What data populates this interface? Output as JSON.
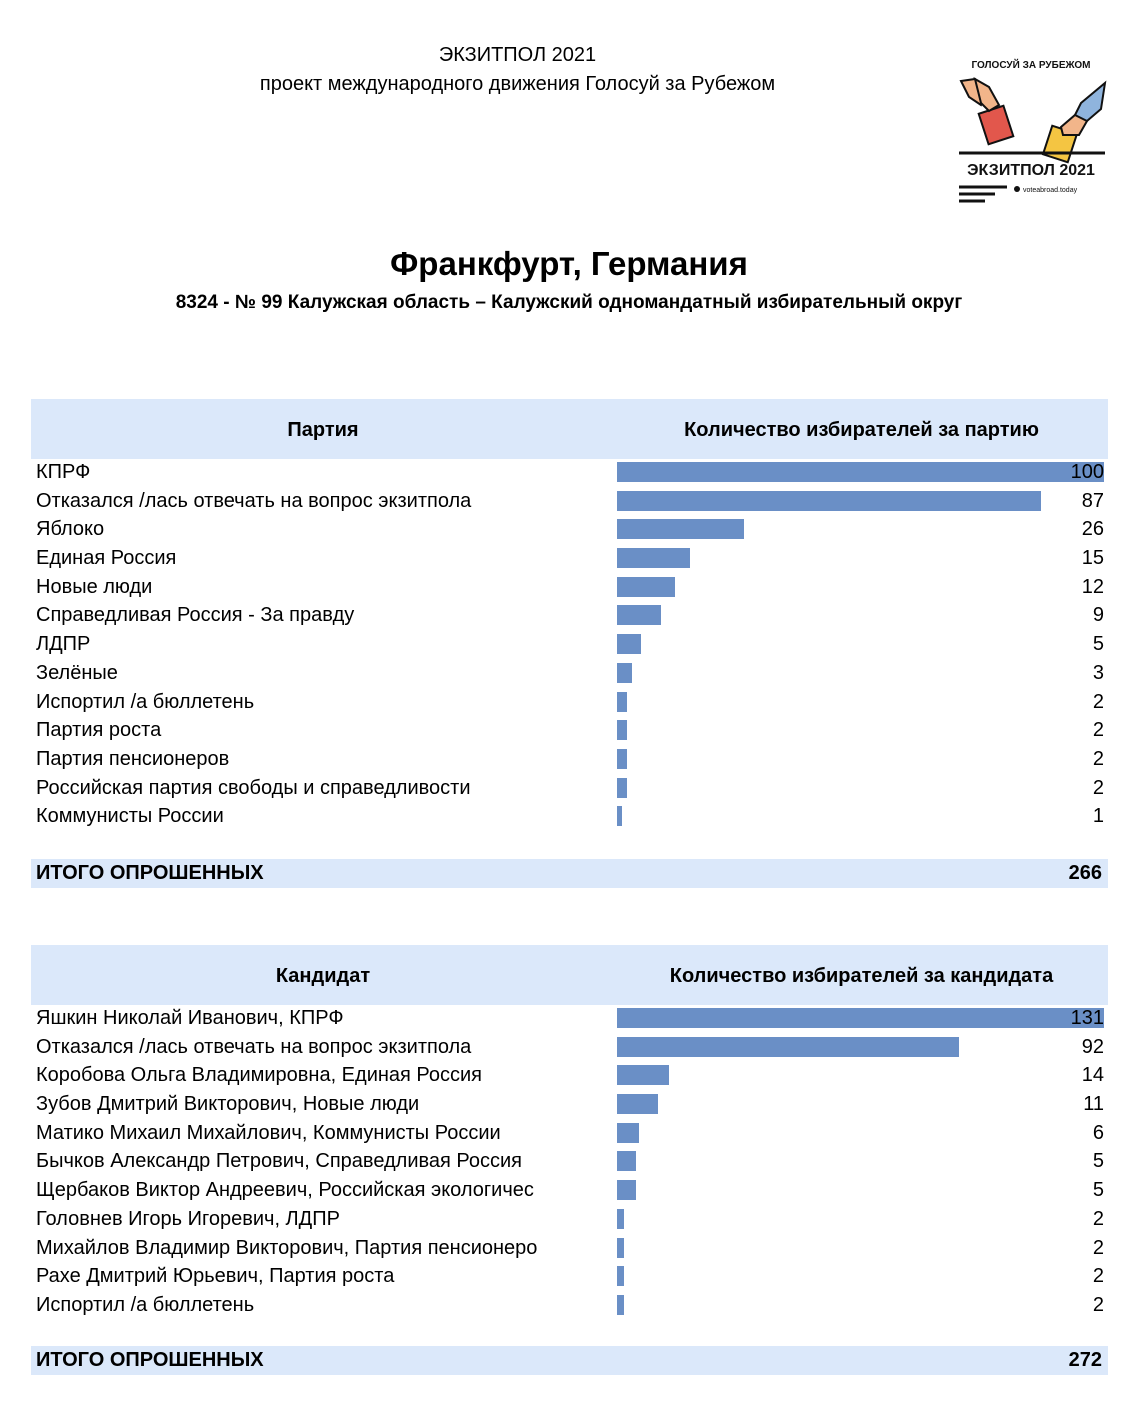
{
  "header": {
    "line1": "ЭКЗИТПОЛ 2021",
    "line2": "проект международного движения Голосуй за Рубежом"
  },
  "logo": {
    "top_text": "ГОЛОСУЙ ЗА РУБЕЖОМ",
    "bottom_text": "ЭКЗИТПОЛ 2021",
    "site": "voteabroad.today"
  },
  "title": {
    "city": "Франкфурт, Германия",
    "district": "8324 - № 99 Калужская область – Калужский одномандатный избирательный округ"
  },
  "chart_data": [
    {
      "type": "bar",
      "orientation": "horizontal",
      "category_header": "Партия",
      "value_header": "Количество избирателей за партию",
      "categories": [
        "КПРФ",
        "Отказался /лась отвечать на вопрос экзитпола",
        "Яблоко",
        "Единая Россия",
        "Новые люди",
        "Справедливая Россия - За правду",
        "ЛДПР",
        "Зелёные",
        "Испортил /а бюллетень",
        "Партия роста",
        "Партия пенсионеров",
        "Российская партия свободы и справедливости",
        "Коммунисты России"
      ],
      "values": [
        100,
        87,
        26,
        15,
        12,
        9,
        5,
        3,
        2,
        2,
        2,
        2,
        1
      ],
      "total_label": "ИТОГО ОПРОШЕННЫХ",
      "total": 266
    },
    {
      "type": "bar",
      "orientation": "horizontal",
      "category_header": "Кандидат",
      "value_header": "Количество избирателей за кандидата",
      "categories": [
        "Яшкин Николай Иванович, КПРФ",
        "Отказался /лась отвечать на вопрос экзитпола",
        "Коробова Ольга Владимировна, Единая Россия",
        "Зубов Дмитрий Викторович, Новые люди",
        "Матико Михаил Михайлович, Коммунисты России",
        "Бычков Александр Петрович, Справедливая Россия",
        "Щербаков Виктор Андреевич, Российская экологичес",
        "Головнев Игорь Игоревич, ЛДПР",
        "Михайлов Владимир Викторович, Партия пенсионеро",
        "Рахе Дмитрий Юрьевич, Партия роста",
        "Испортил /а бюллетень"
      ],
      "values": [
        131,
        92,
        14,
        11,
        6,
        5,
        5,
        2,
        2,
        2,
        2
      ],
      "total_label": "ИТОГО ОПРОШЕННЫХ",
      "total": 272
    }
  ],
  "colors": {
    "bar": "#6a8fc6",
    "header_bg": "#dbe8fa"
  }
}
